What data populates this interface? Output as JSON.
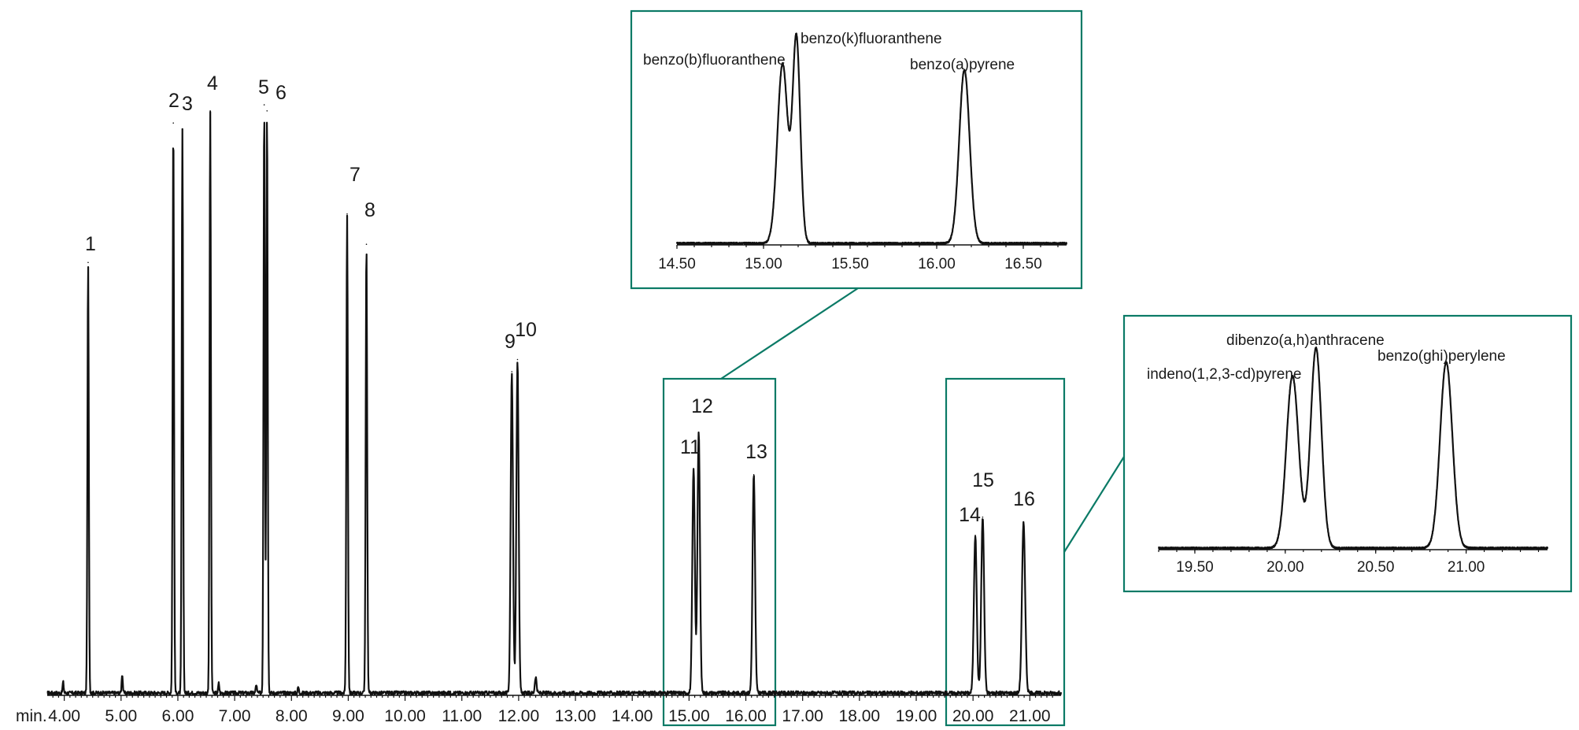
{
  "chart_data": [
    {
      "id": "main",
      "type": "line",
      "title": "",
      "xlabel": "",
      "ylabel": "",
      "x_unit_label": "min.",
      "xlim": [
        3.7,
        21.55
      ],
      "x_ticks": [
        "4.00",
        "5.00",
        "6.00",
        "7.00",
        "8.00",
        "9.00",
        "10.00",
        "11.00",
        "12.00",
        "13.00",
        "14.00",
        "15.00",
        "16.00",
        "17.00",
        "18.00",
        "19.00",
        "20.00",
        "21.00"
      ],
      "ylim": [
        0,
        1.0
      ],
      "grid": false,
      "peaks": [
        {
          "label": "1",
          "x": 4.42,
          "height": 0.71,
          "width": 0.012
        },
        {
          "label": "2",
          "x": 5.92,
          "height": 0.94,
          "width": 0.012
        },
        {
          "label": "3",
          "x": 6.08,
          "height": 0.93,
          "width": 0.012
        },
        {
          "label": "4",
          "x": 6.57,
          "height": 0.96,
          "width": 0.012
        },
        {
          "label": "5",
          "x": 7.52,
          "height": 0.97,
          "width": 0.012
        },
        {
          "label": "6",
          "x": 7.57,
          "height": 0.96,
          "width": 0.012
        },
        {
          "label": "7",
          "x": 8.98,
          "height": 0.79,
          "width": 0.013
        },
        {
          "label": "8",
          "x": 9.32,
          "height": 0.74,
          "width": 0.013
        },
        {
          "label": "9",
          "x": 11.88,
          "height": 0.53,
          "width": 0.02
        },
        {
          "label": "10",
          "x": 11.98,
          "height": 0.55,
          "width": 0.02
        },
        {
          "label": "11",
          "x": 15.08,
          "height": 0.37,
          "width": 0.022
        },
        {
          "label": "12",
          "x": 15.17,
          "height": 0.43,
          "width": 0.022
        },
        {
          "label": "13",
          "x": 16.14,
          "height": 0.36,
          "width": 0.022
        },
        {
          "label": "14",
          "x": 20.04,
          "height": 0.26,
          "width": 0.025
        },
        {
          "label": "15",
          "x": 20.17,
          "height": 0.29,
          "width": 0.025
        },
        {
          "label": "16",
          "x": 20.89,
          "height": 0.28,
          "width": 0.028
        }
      ],
      "minor_peaks": [
        {
          "x": 3.98,
          "height": 0.018,
          "width": 0.01
        },
        {
          "x": 5.02,
          "height": 0.032,
          "width": 0.01
        },
        {
          "x": 6.72,
          "height": 0.016,
          "width": 0.01
        },
        {
          "x": 7.38,
          "height": 0.014,
          "width": 0.01
        },
        {
          "x": 8.12,
          "height": 0.01,
          "width": 0.01
        },
        {
          "x": 12.3,
          "height": 0.027,
          "width": 0.015
        }
      ]
    },
    {
      "id": "inset1",
      "type": "line",
      "title": "",
      "xlim": [
        14.5,
        16.75
      ],
      "x_ticks": [
        "14.50",
        "15.00",
        "15.50",
        "16.00",
        "16.50"
      ],
      "ylim": [
        0,
        1.0
      ],
      "grid": false,
      "peaks": [
        {
          "label": "benzo(b)fluoranthene",
          "x": 15.11,
          "height": 0.88,
          "width": 0.03
        },
        {
          "label": "benzo(k)fluoranthene",
          "x": 15.19,
          "height": 1.0,
          "width": 0.022
        },
        {
          "label": "benzo(a)pyrene",
          "x": 16.16,
          "height": 0.85,
          "width": 0.03
        }
      ]
    },
    {
      "id": "inset2",
      "type": "line",
      "title": "",
      "xlim": [
        19.3,
        21.45
      ],
      "x_ticks": [
        "19.50",
        "20.00",
        "20.50",
        "21.00"
      ],
      "ylim": [
        0,
        1.0
      ],
      "grid": false,
      "peaks": [
        {
          "label": "indeno(1,2,3-cd)pyrene",
          "x": 20.04,
          "height": 0.86,
          "width": 0.034
        },
        {
          "label": "dibenzo(a,h)anthracene",
          "x": 20.17,
          "height": 1.0,
          "width": 0.03
        },
        {
          "label": "benzo(ghi)perylene",
          "x": 20.89,
          "height": 0.93,
          "width": 0.034
        }
      ]
    }
  ],
  "colors": {
    "trace": "#111111",
    "highlight_box": "#0b7a66"
  }
}
